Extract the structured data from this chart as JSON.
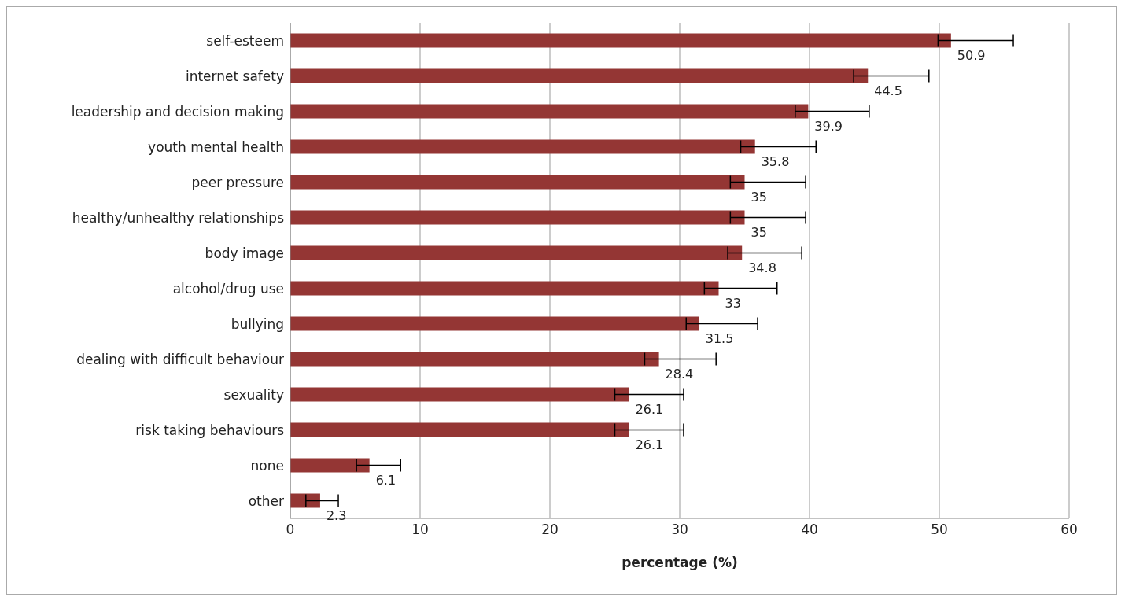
{
  "chart_data": {
    "type": "bar",
    "orientation": "horizontal",
    "xlabel": "percentage (%)",
    "categories": [
      "self-esteem",
      "internet safety",
      "leadership and decision making",
      "youth mental health",
      "peer pressure",
      "healthy/unhealthy relationships",
      "body image",
      "alcohol/drug use",
      "bullying",
      "dealing with difficult behaviour",
      "sexuality",
      "risk taking behaviours",
      "none",
      "other"
    ],
    "values": [
      50.9,
      44.5,
      39.9,
      35.8,
      35,
      35,
      34.8,
      33,
      31.5,
      28.4,
      26.1,
      26.1,
      6.1,
      2.3
    ],
    "errors": [
      [
        49.9,
        55.7
      ],
      [
        43.4,
        49.2
      ],
      [
        38.9,
        44.6
      ],
      [
        34.7,
        40.5
      ],
      [
        33.9,
        39.7
      ],
      [
        33.9,
        39.7
      ],
      [
        33.7,
        39.4
      ],
      [
        31.9,
        37.5
      ],
      [
        30.5,
        36.0
      ],
      [
        27.3,
        32.8
      ],
      [
        25.0,
        30.3
      ],
      [
        25.0,
        30.3
      ],
      [
        5.1,
        8.5
      ],
      [
        1.2,
        3.7
      ]
    ],
    "color": "#943634",
    "xlim": [
      0,
      60
    ],
    "xticks": [
      0,
      10,
      20,
      30,
      40,
      50,
      60
    ],
    "grid": "x",
    "data_labels": true,
    "legend": false
  }
}
